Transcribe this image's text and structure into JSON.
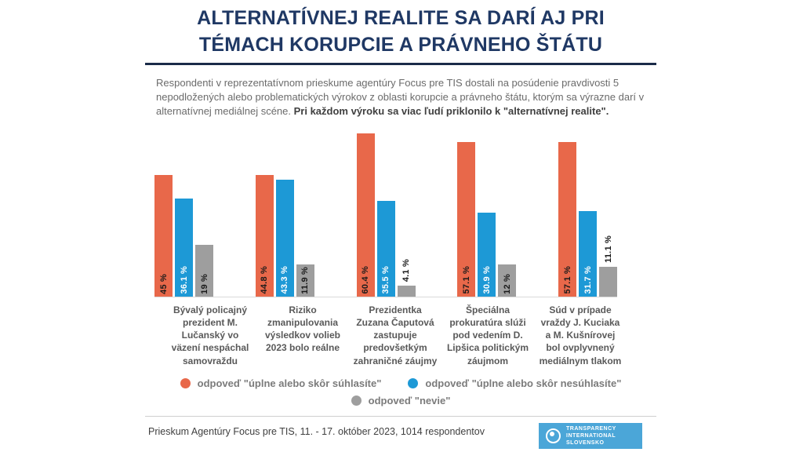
{
  "title": {
    "line1": "ALTERNATÍVNEJ REALITE SA DARÍ AJ PRI",
    "line2": "TÉMACH KORUPCIE A PRÁVNEHO ŠTÁTU"
  },
  "intro": {
    "regular": "Respondenti v reprezentatívnom prieskume agentúry Focus pre TIS dostali na posúdenie pravdivosti 5 nepodložených alebo problematických výrokov z oblasti korupcie a právneho štátu, ktorým sa výrazne darí v alternatívnej mediálnej scéne.",
    "bold": "Pri každom výroku sa viac ľudí priklonilo k \"alternatívnej realite\"."
  },
  "chart_data": {
    "type": "bar",
    "categories": [
      "Bývalý policajný prezident M. Lučanský vo väzení nespáchal samovraždu",
      "Riziko zmanipulovania výsledkov volieb 2023 bolo reálne",
      "Prezidentka Zuzana Čaputová zastupuje predovšetkým zahraničné záujmy",
      "Špeciálna prokuratúra slúži pod vedením D. Lipšica politickým záujmom",
      "Súd v prípade vraždy J. Kuciaka a M. Kušnírovej bol ovplyvnený mediálnym tlakom"
    ],
    "series": [
      {
        "name": "odpoveď \"úplne alebo skôr súhlasíte\"",
        "color": "#E8684A",
        "label_color": "#1a1a1a",
        "values": [
          45,
          44.8,
          60.4,
          57.1,
          57.1
        ],
        "labels": [
          "45 %",
          "44.8 %",
          "60.4 %",
          "57.1 %",
          "57.1 %"
        ]
      },
      {
        "name": "odpoveď \"úplne alebo skôr nesúhlasíte\"",
        "color": "#1D99D6",
        "label_color": "#ffffff",
        "values": [
          36.1,
          43.3,
          35.5,
          30.9,
          31.7
        ],
        "labels": [
          "36.1 %",
          "43.3 %",
          "35.5 %",
          "30.9 %",
          "31.7 %"
        ]
      },
      {
        "name": "odpoveď \"nevie\"",
        "color": "#9E9E9E",
        "label_color": "#1a1a1a",
        "values": [
          19,
          11.9,
          4.1,
          12,
          11.1
        ],
        "labels": [
          "19 %",
          "11.9 %",
          "4.1 %",
          "12 %",
          "11.1 %"
        ]
      }
    ],
    "ylim": [
      0,
      62
    ],
    "grid": false,
    "legend_position": "bottom",
    "value_label_rotation": -90
  },
  "footer": {
    "source": "Prieskum Agentúry Focus pre TIS, 11. - 17. október 2023, 1014 respondentov"
  },
  "logo": {
    "line1": "TRANSPARENCY",
    "line2": "INTERNATIONAL",
    "line3": "SLOVENSKO",
    "bg_color": "#4ba6d8"
  }
}
